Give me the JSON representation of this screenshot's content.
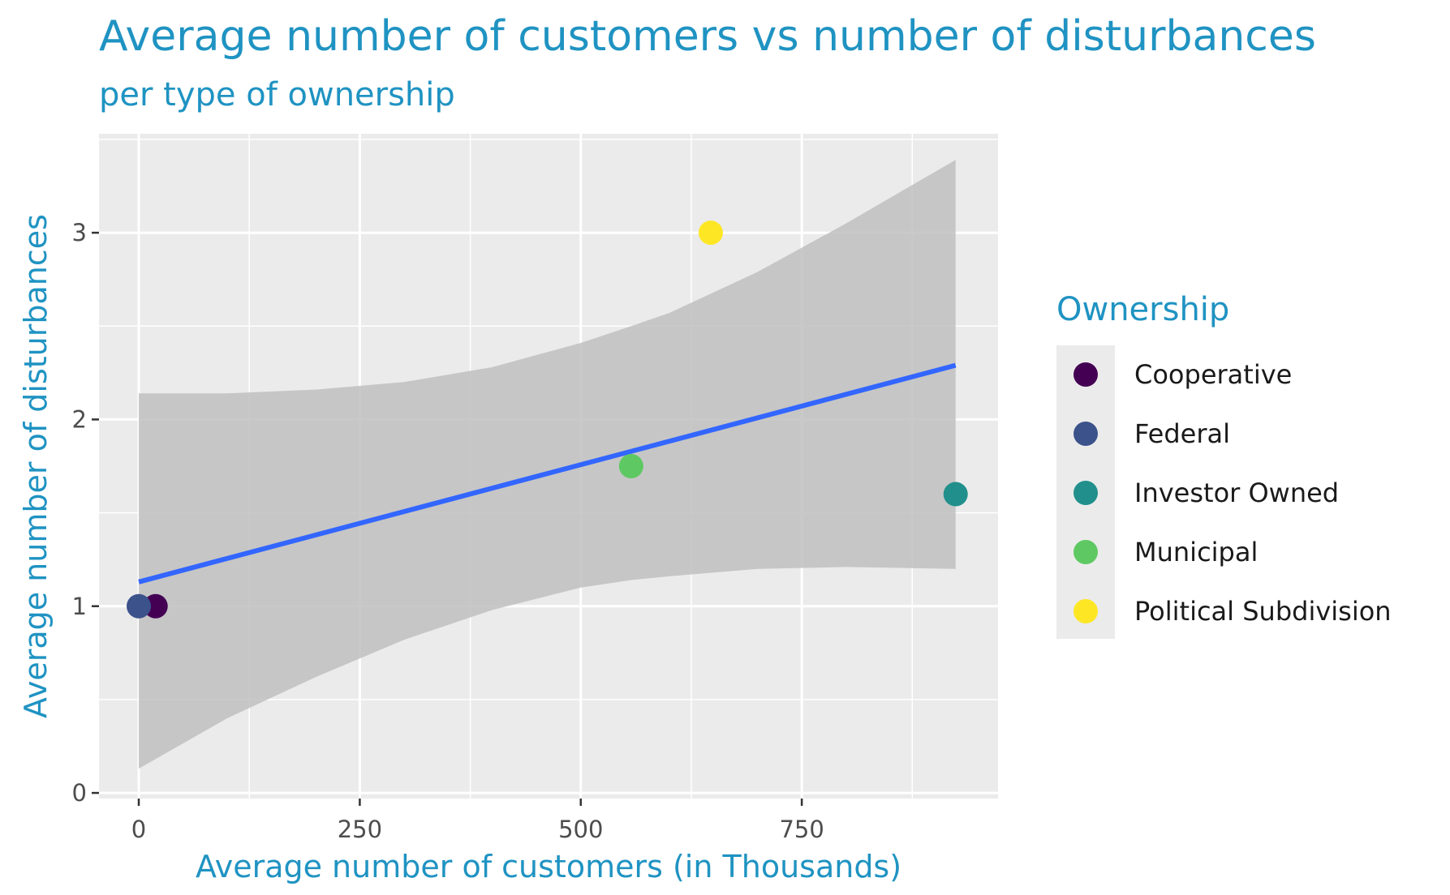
{
  "chart_data": {
    "type": "scatter",
    "title": "Average number of customers vs number of disturbances",
    "subtitle": "per type of ownership",
    "xlabel": "Average number of customers (in Thousands)",
    "ylabel": "Average number of disturbances",
    "xlim": [
      -45,
      972
    ],
    "ylim": [
      -0.03,
      3.53
    ],
    "x_ticks": [
      0,
      250,
      500,
      750
    ],
    "x_tick_labels": [
      "0",
      "250",
      "500",
      "750"
    ],
    "y_ticks": [
      0,
      1,
      2,
      3
    ],
    "y_tick_labels": [
      "0",
      "1",
      "2",
      "3"
    ],
    "grid": true,
    "legend": {
      "title": "Ownership",
      "position": "right"
    },
    "series": [
      {
        "name": "Cooperative",
        "color": "#440154",
        "x": [
          19
        ],
        "y": [
          1.0
        ]
      },
      {
        "name": "Federal",
        "color": "#3b528b",
        "x": [
          0
        ],
        "y": [
          1.0
        ]
      },
      {
        "name": "Investor Owned",
        "color": "#21908c",
        "x": [
          924
        ],
        "y": [
          1.6
        ]
      },
      {
        "name": "Municipal",
        "color": "#5ec962",
        "x": [
          557
        ],
        "y": [
          1.75
        ]
      },
      {
        "name": "Political Subdivision",
        "color": "#fde725",
        "x": [
          647
        ],
        "y": [
          3.0
        ]
      }
    ],
    "trend_line": {
      "method": "linear",
      "color": "#3366ff",
      "x": [
        0,
        924
      ],
      "y": [
        1.13,
        2.29
      ]
    },
    "confidence_band": {
      "color": "#bfbfbf",
      "x": [
        0,
        100,
        200,
        300,
        400,
        500,
        557,
        600,
        700,
        800,
        924
      ],
      "upper": [
        2.14,
        2.14,
        2.16,
        2.2,
        2.28,
        2.41,
        2.5,
        2.57,
        2.79,
        3.05,
        3.39
      ],
      "lower": [
        0.13,
        0.4,
        0.62,
        0.82,
        0.98,
        1.1,
        1.14,
        1.16,
        1.2,
        1.21,
        1.2
      ]
    }
  }
}
